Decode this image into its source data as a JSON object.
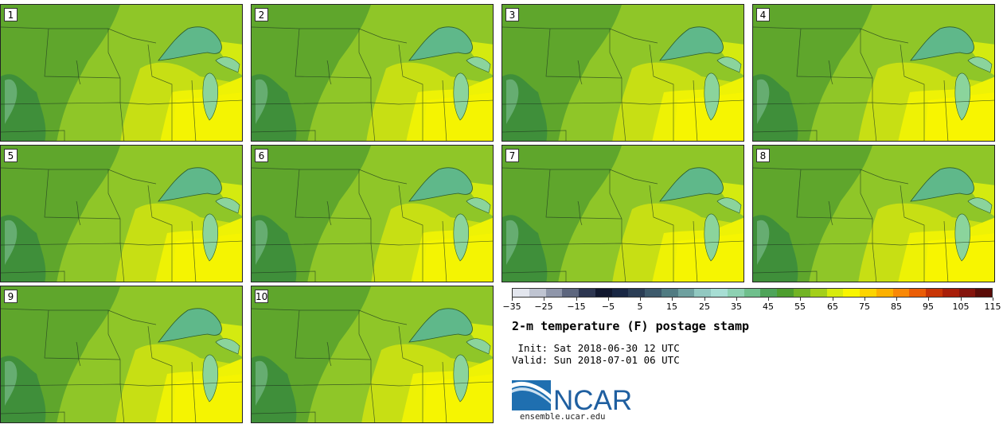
{
  "panels": [
    {
      "label": "1",
      "variant": 0
    },
    {
      "label": "2",
      "variant": 1
    },
    {
      "label": "3",
      "variant": 2
    },
    {
      "label": "4",
      "variant": 3
    },
    {
      "label": "5",
      "variant": 1
    },
    {
      "label": "6",
      "variant": 0
    },
    {
      "label": "7",
      "variant": 2
    },
    {
      "label": "8",
      "variant": 3
    },
    {
      "label": "9",
      "variant": 1
    },
    {
      "label": "10",
      "variant": 2
    }
  ],
  "colorbar": {
    "colors": [
      "#e3e6ee",
      "#bfc4d1",
      "#8f96aa",
      "#5d667e",
      "#2c3550",
      "#10172e",
      "#182643",
      "#2a3d55",
      "#3d5a6c",
      "#507b82",
      "#6ea09f",
      "#91c8c0",
      "#a7ded4",
      "#8dd1b2",
      "#6fbf8c",
      "#4ea459",
      "#4d9e2e",
      "#72b425",
      "#a3cf1a",
      "#d7eb0e",
      "#f9f500",
      "#fdd400",
      "#fcb000",
      "#f98806",
      "#ea5d06",
      "#c83506",
      "#a81e09",
      "#84140c",
      "#5a0c08"
    ],
    "tick_labels": [
      "−35",
      "−25",
      "−15",
      "−5",
      "5",
      "15",
      "25",
      "35",
      "45",
      "55",
      "65",
      "75",
      "85",
      "95",
      "105",
      "115"
    ]
  },
  "title": "2-m temperature (F) postage stamp",
  "init": " Init: Sat 2018-06-30 12 UTC",
  "valid": "Valid: Sun 2018-07-01 06 UTC",
  "logo_text": "NCAR",
  "site": "ensemble.ucar.edu"
}
